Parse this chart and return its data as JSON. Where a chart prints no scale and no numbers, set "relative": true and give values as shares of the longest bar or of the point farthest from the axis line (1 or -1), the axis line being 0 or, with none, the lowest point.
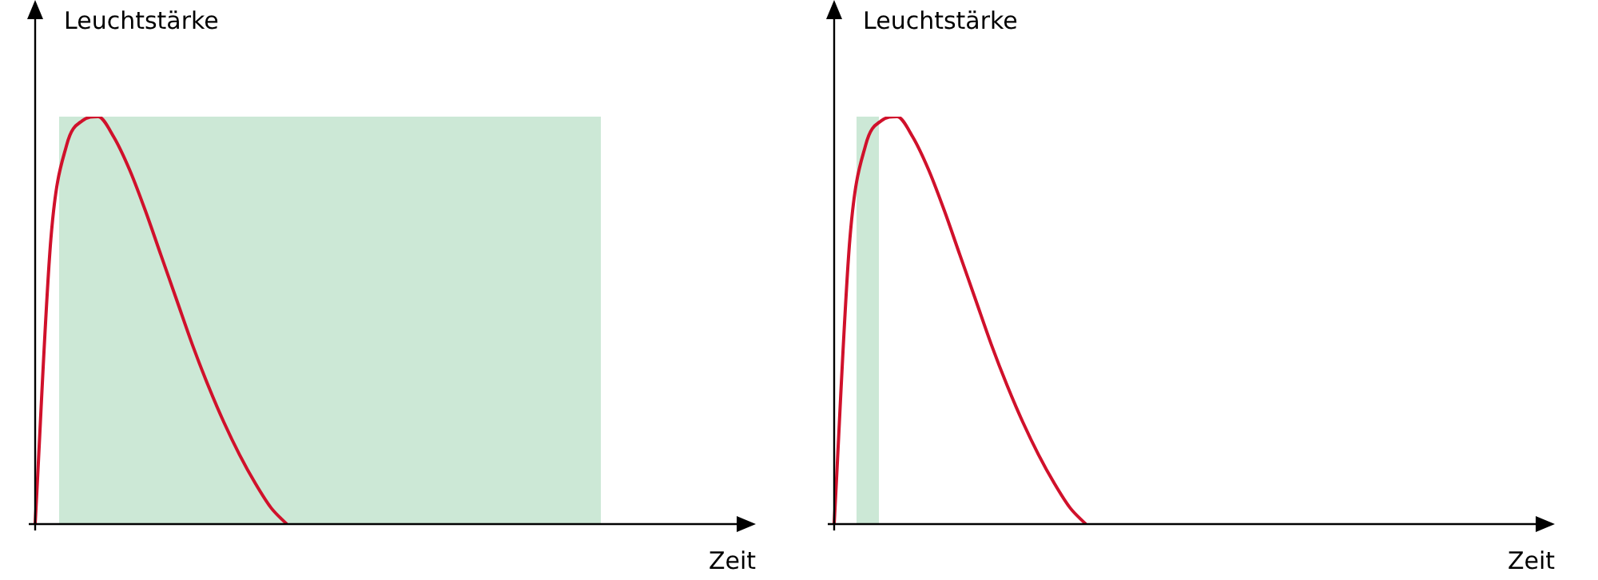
{
  "chart_data": [
    {
      "type": "line",
      "relative": true,
      "xlabel": "Zeit",
      "ylabel": "Leuchtstärke",
      "grid": false,
      "legend": false,
      "marker": "none",
      "categories": [
        null,
        null,
        null,
        null,
        null,
        null,
        null,
        null,
        null,
        null,
        null,
        null,
        null,
        null,
        null,
        null,
        null,
        null,
        null,
        null,
        null,
        null,
        null,
        null,
        null,
        null,
        null,
        null,
        null,
        null,
        null,
        null,
        null,
        null,
        null,
        null,
        null,
        null,
        null,
        null,
        null,
        null,
        null,
        null,
        null
      ],
      "series": [
        {
          "color": "#d0112b",
          "values": [
            0,
            0.7,
            0.93,
            0.99,
            1,
            0.95,
            0.87,
            0.77,
            0.66,
            0.55,
            0.44,
            0.34,
            0.25,
            0.17,
            0.1,
            0.04,
            0,
            null,
            null,
            null,
            null,
            null,
            null,
            null,
            null,
            null,
            null,
            null,
            null,
            null,
            null,
            null,
            null,
            null,
            null,
            null,
            null,
            null,
            null,
            null,
            null,
            null,
            null,
            null,
            null
          ]
        }
      ]
    },
    {
      "type": "line",
      "relative": true,
      "xlabel": "Zeit",
      "ylabel": "Leuchtstärke",
      "grid": false,
      "legend": false,
      "marker": "none",
      "categories": [
        null,
        null,
        null,
        null,
        null,
        null,
        null,
        null,
        null,
        null,
        null,
        null,
        null,
        null,
        null,
        null,
        null,
        null,
        null,
        null,
        null,
        null,
        null,
        null,
        null,
        null,
        null,
        null,
        null,
        null,
        null,
        null,
        null,
        null,
        null,
        null,
        null,
        null,
        null,
        null,
        null,
        null,
        null,
        null,
        null
      ],
      "series": [
        {
          "color": "#d0112b",
          "values": [
            0,
            0.7,
            0.93,
            0.99,
            1,
            0.95,
            0.87,
            0.77,
            0.66,
            0.55,
            0.44,
            0.34,
            0.25,
            0.17,
            0.1,
            0.04,
            0,
            null,
            null,
            null,
            null,
            null,
            null,
            null,
            null,
            null,
            null,
            null,
            null,
            null,
            null,
            null,
            null,
            null,
            null,
            null,
            null,
            null,
            null,
            null,
            null,
            null,
            null,
            null,
            null
          ]
        }
      ]
    }
  ]
}
